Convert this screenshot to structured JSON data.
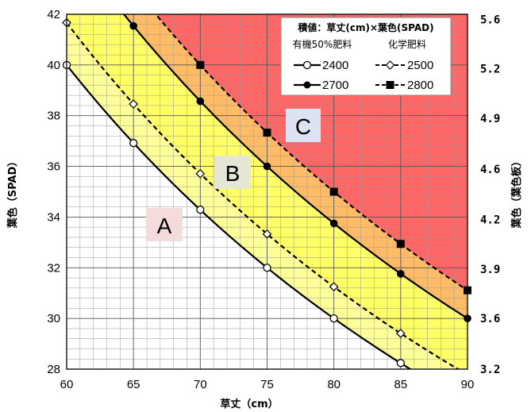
{
  "chart_data": {
    "type": "line",
    "xlabel": "草丈（cm）",
    "ylabel": "葉色（SPAD）",
    "ylabel_right": "葉色（葉色板）",
    "xlim": [
      60,
      90
    ],
    "ylim": [
      28,
      42
    ],
    "x_ticks": [
      "60",
      "65",
      "70",
      "75",
      "80",
      "85",
      "90"
    ],
    "y_ticks": [
      "28",
      "30",
      "32",
      "34",
      "36",
      "38",
      "40",
      "42"
    ],
    "y_right_ticks": [
      {
        "y": 28.0,
        "label": "3.2"
      },
      {
        "y": 30.0,
        "label": "3.6"
      },
      {
        "y": 31.95,
        "label": "3.9"
      },
      {
        "y": 33.9,
        "label": "4.2"
      },
      {
        "y": 35.9,
        "label": "4.6"
      },
      {
        "y": 37.9,
        "label": "4.9"
      },
      {
        "y": 39.85,
        "label": "5.2"
      },
      {
        "y": 41.8,
        "label": "5.6"
      }
    ],
    "grid": true,
    "legend": {
      "position": "top-right",
      "title": "積値：草丈(cm)×葉色(SPAD)",
      "col_headers": [
        "有機50%肥料",
        "化学肥料"
      ]
    },
    "series": [
      {
        "name": "2400",
        "product": 2400,
        "style": "solid",
        "marker": "open-circle",
        "x": [
          60,
          65,
          70,
          75,
          80,
          85
        ],
        "y": [
          40.0,
          36.92,
          34.29,
          32.0,
          30.0,
          28.24
        ]
      },
      {
        "name": "2500",
        "product": 2500,
        "style": "dashed",
        "marker": "open-diamond",
        "x": [
          60,
          65,
          70,
          75,
          80,
          85
        ],
        "y": [
          41.67,
          38.46,
          35.71,
          33.33,
          31.25,
          29.41
        ]
      },
      {
        "name": "2700",
        "product": 2700,
        "style": "solid",
        "marker": "filled-circle",
        "x": [
          65,
          70,
          75,
          80,
          85,
          90
        ],
        "y": [
          41.54,
          38.57,
          36.0,
          33.75,
          31.76,
          30.0
        ]
      },
      {
        "name": "2800",
        "product": 2800,
        "style": "dashed",
        "marker": "filled-square",
        "x": [
          70,
          75,
          80,
          85,
          90
        ],
        "y": [
          40.0,
          37.33,
          35.0,
          32.94,
          31.11
        ]
      }
    ],
    "regions": [
      {
        "label": "A",
        "color": "#ffffff"
      },
      {
        "label": "B",
        "color": "#ffff66"
      },
      {
        "label": "C",
        "color": "#ff6666"
      }
    ],
    "band_colors": {
      "light_yellow": "#ffff99",
      "yellow": "#ffff66",
      "orange": "#ffbb66",
      "red": "#ff6666"
    }
  }
}
